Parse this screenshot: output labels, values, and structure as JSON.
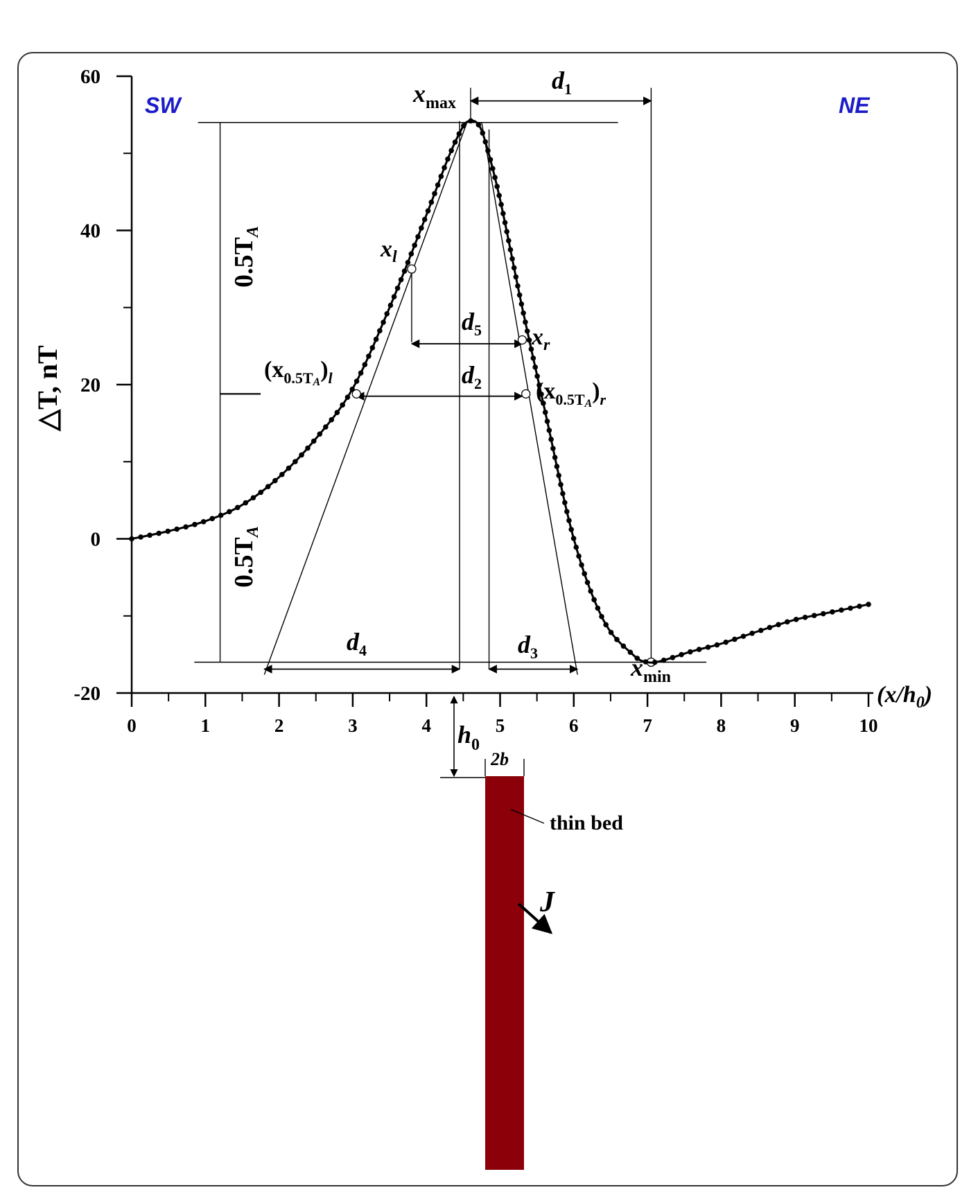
{
  "colors": {
    "curve": "#000000",
    "direction_labels": "#1c1cc8",
    "thin_bed": "#8b0009"
  },
  "chart_data": {
    "type": "line",
    "title": "",
    "xlabel": "(x/h0)",
    "ylabel": "△T, nT",
    "xlim": [
      0,
      10
    ],
    "ylim": [
      -20,
      60
    ],
    "x_ticks": [
      "0",
      "1",
      "2",
      "3",
      "4",
      "5",
      "6",
      "7",
      "8",
      "9",
      "10"
    ],
    "y_ticks": [
      "60",
      "40",
      "20",
      "0",
      "-20"
    ],
    "grid": false,
    "marker": "dot",
    "series": [
      {
        "x": [
          0,
          0.5,
          1,
          1.5,
          2,
          2.5,
          3,
          3.5,
          4,
          4.3,
          4.5,
          4.6,
          4.7,
          4.8,
          5,
          5.3,
          5.6,
          6,
          6.4,
          6.8,
          7.0,
          7.2,
          7.6,
          8,
          8.5,
          9,
          9.5,
          10
        ],
        "y": [
          0,
          1,
          2.3,
          4.4,
          8,
          13,
          19.5,
          30,
          42,
          49.5,
          53.5,
          54.2,
          53.8,
          51.5,
          44,
          30,
          17,
          0,
          -10.5,
          -15,
          -16,
          -15.8,
          -14.6,
          -13.6,
          -12,
          -10.5,
          -9.5,
          -8.5
        ]
      }
    ],
    "reference_points": {
      "x_max": 4.6,
      "x_min": 7.05,
      "T_max": 54,
      "T_min": -16,
      "x_half_left": 3.05,
      "x_half_right": 5.35,
      "x_l": 3.8,
      "x_r": 5.3,
      "T_half": 18.8
    },
    "annotations": {
      "dir_left": "SW",
      "dir_right": "NE",
      "x_max_label": "x",
      "x_max_sub": "max",
      "x_min_label": "x",
      "x_min_sub": "min",
      "x_l_label": "x",
      "x_l_sub": "l",
      "x_r_label": "x",
      "x_r_sub": "r",
      "d1": "d",
      "d1_sub": "1",
      "d2": "d",
      "d2_sub": "2",
      "d3": "d",
      "d3_sub": "3",
      "d4": "d",
      "d4_sub": "4",
      "d5": "d",
      "d5_sub": "5",
      "half_TA": "0.5T",
      "half_TA_sub": "A",
      "half_left_label": "(x",
      "half_left_sub": "0.5T",
      "half_left_sub2": "A",
      "half_left_tail": ")",
      "half_left_tail_sub": "l",
      "half_right_label": "(x",
      "half_right_sub": "0.5T",
      "half_right_sub2": "A",
      "half_right_tail": ")",
      "half_right_tail_sub": "r",
      "h0": "h",
      "h0_sub": "0",
      "width_label": "2b",
      "thin_bed": "thin bed",
      "J": "J"
    }
  }
}
